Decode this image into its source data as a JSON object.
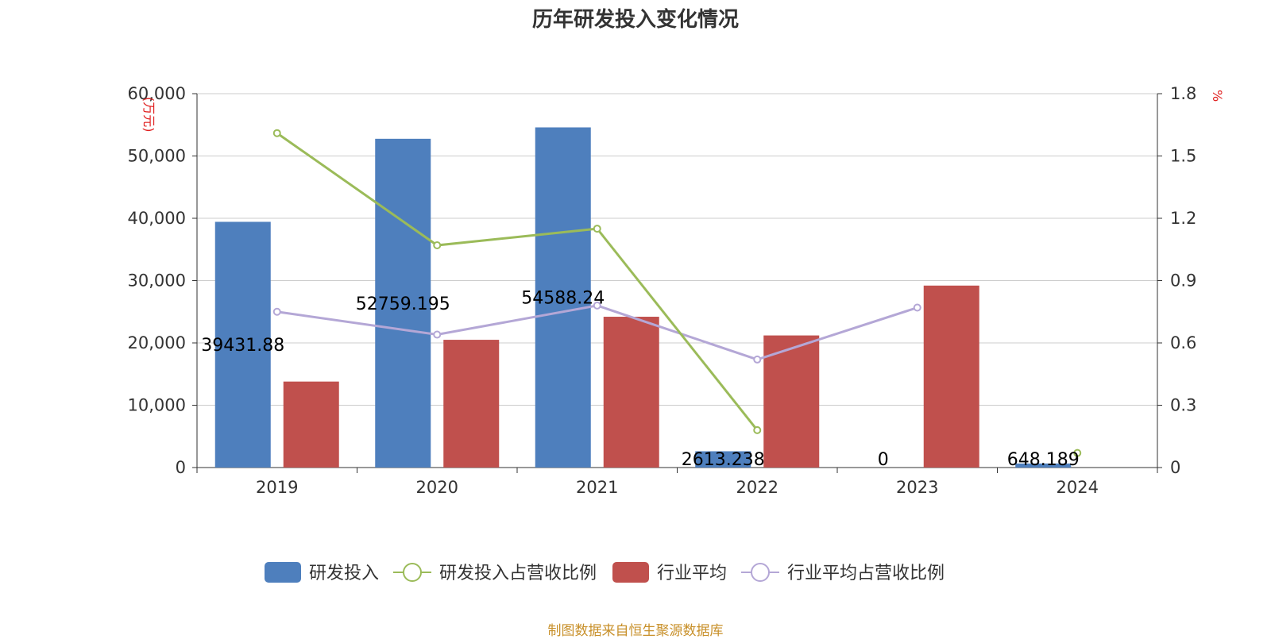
{
  "title": "历年研发投入变化情况",
  "source": "制图数据来自恒生聚源数据库",
  "colors": {
    "rd_bar": "#4e7fbd",
    "avg_bar": "#c0504d",
    "rd_ratio_line": "#9bbb59",
    "avg_ratio_line": "#b4a7d6",
    "unit_label": "#e02020",
    "axis_text": "#333333",
    "grid": "#cccccc"
  },
  "chart_data": {
    "type": "bar",
    "title": "历年研发投入变化情况",
    "categories": [
      "2019",
      "2020",
      "2021",
      "2022",
      "2023",
      "2024"
    ],
    "series": [
      {
        "name": "研发投入",
        "type": "bar",
        "axis": "left",
        "values": [
          39431.88,
          52759.195,
          54588.24,
          2613.238,
          0,
          648.189
        ],
        "labels": [
          "39431.88",
          "52759.195",
          "54588.24",
          "2613.238",
          "0",
          "648.189"
        ]
      },
      {
        "name": "研发投入占营收比例",
        "type": "line",
        "axis": "right",
        "values": [
          1.61,
          1.07,
          1.15,
          0.18,
          null,
          0.07
        ]
      },
      {
        "name": "行业平均",
        "type": "bar",
        "axis": "left",
        "values": [
          13800,
          20500,
          24200,
          21200,
          29200,
          null
        ]
      },
      {
        "name": "行业平均占营收比例",
        "type": "line",
        "axis": "right",
        "values": [
          0.75,
          0.64,
          0.78,
          0.52,
          0.77,
          null
        ]
      }
    ],
    "y_left": {
      "label": "(万元)",
      "min": 0,
      "max": 60000,
      "ticks": [
        "0",
        "10,000",
        "20,000",
        "30,000",
        "40,000",
        "50,000",
        "60,000"
      ]
    },
    "y_right": {
      "label": "%",
      "min": 0,
      "max": 1.8,
      "ticks": [
        "0",
        "0.3",
        "0.6",
        "0.9",
        "1.2",
        "1.5",
        "1.8"
      ]
    },
    "grid": true,
    "legend_position": "bottom"
  }
}
